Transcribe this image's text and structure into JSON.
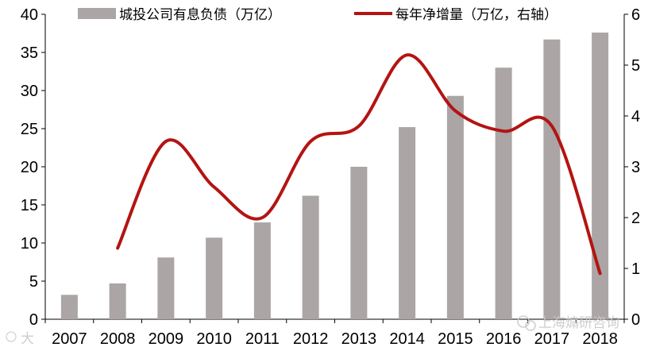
{
  "chart_data": {
    "type": "bar+line",
    "categories": [
      "2007",
      "2008",
      "2009",
      "2010",
      "2011",
      "2012",
      "2013",
      "2014",
      "2015",
      "2016",
      "2017",
      "2018"
    ],
    "series": [
      {
        "name": "城投公司有息负债（万亿）",
        "type": "bar",
        "axis": "left",
        "values": [
          3.2,
          4.7,
          8.1,
          10.7,
          12.7,
          16.2,
          20.0,
          25.2,
          29.3,
          33.0,
          36.7,
          37.6
        ]
      },
      {
        "name": "每年净增量（万亿，右轴）",
        "type": "line",
        "axis": "right",
        "values": [
          null,
          1.4,
          3.5,
          2.6,
          2.0,
          3.5,
          3.8,
          5.2,
          4.1,
          3.7,
          3.8,
          0.9
        ]
      }
    ],
    "y_left": {
      "min": 0,
      "max": 40,
      "ticks": [
        "0",
        "5",
        "10",
        "15",
        "20",
        "25",
        "30",
        "35",
        "40"
      ]
    },
    "y_right": {
      "min": 0,
      "max": 6,
      "ticks": [
        "0",
        "1",
        "2",
        "3",
        "4",
        "5",
        "6"
      ]
    },
    "legend_position": "top",
    "grid": false,
    "colors": {
      "bar": "#aba5a5",
      "line": "#b31412"
    }
  },
  "watermarks": [
    "上海煽研咨询",
    "大"
  ]
}
